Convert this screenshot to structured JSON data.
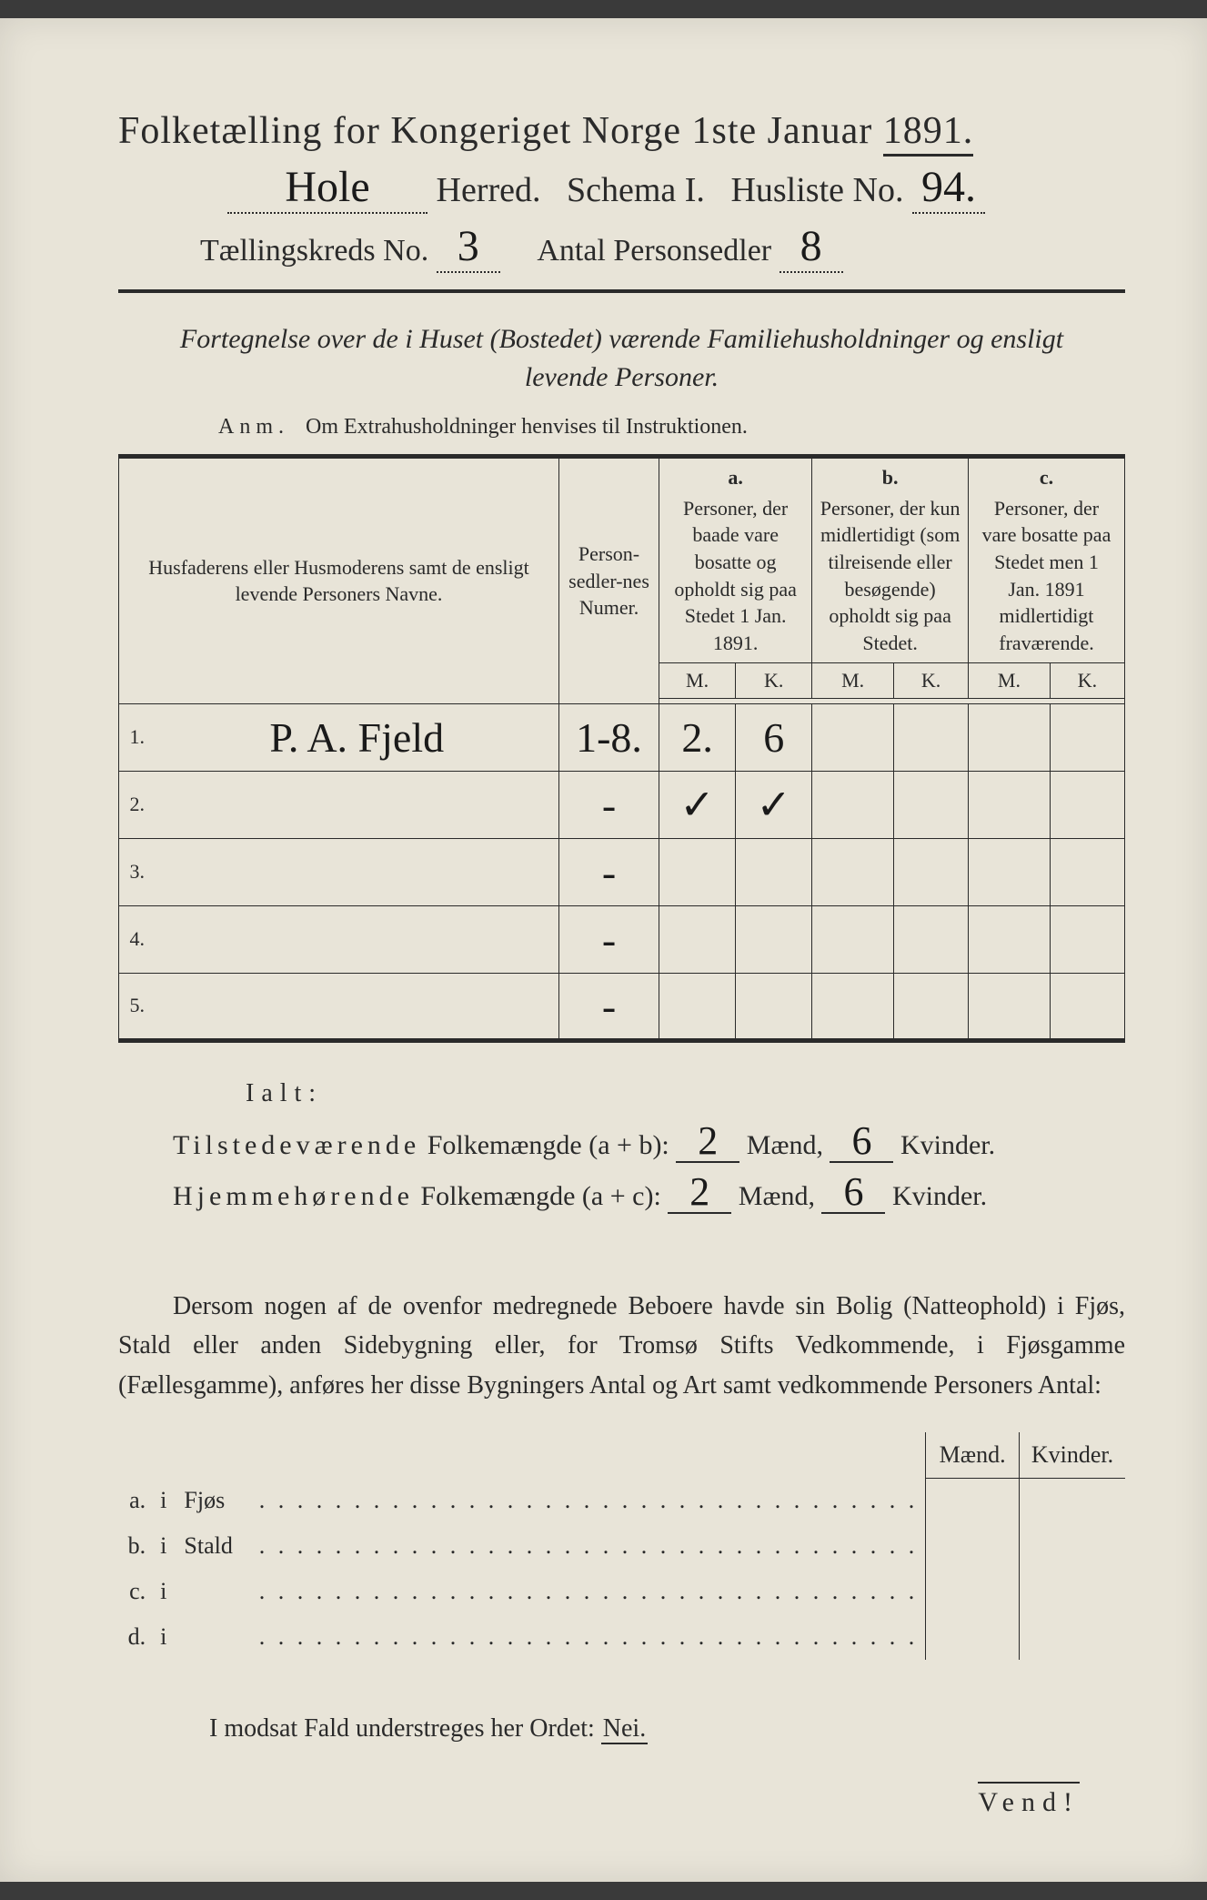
{
  "colors": {
    "paper": "#e8e4d8",
    "ink": "#2a2a2a",
    "handwriting": "#1a1a1a",
    "page_bg": "#3a3a3a"
  },
  "header": {
    "title_prefix": "Folketælling for Kongeriget Norge 1ste Januar",
    "year": "1891.",
    "herred_hw": "Hole",
    "herred_label": "Herred.",
    "schema_label": "Schema I.",
    "husliste_label": "Husliste No.",
    "husliste_no": "94.",
    "kreds_label": "Tællingskreds No.",
    "kreds_no": "3",
    "personsedler_label": "Antal Personsedler",
    "personsedler_no": "8"
  },
  "fortegnelse": {
    "line1": "Fortegnelse over de i Huset (Bostedet) værende Familiehusholdninger og ensligt",
    "line2": "levende Personer."
  },
  "anm": {
    "prefix": "Anm.",
    "text": "Om Extrahusholdninger henvises til Instruktionen."
  },
  "table": {
    "col_name": "Husfaderens eller Husmoderens samt de ensligt levende Personers Navne.",
    "col_numer": "Person-sedler-nes Numer.",
    "col_a_label": "a.",
    "col_a": "Personer, der baade vare bosatte og opholdt sig paa Stedet 1 Jan. 1891.",
    "col_b_label": "b.",
    "col_b": "Personer, der kun midlertidigt (som tilreisende eller besøgende) opholdt sig paa Stedet.",
    "col_c_label": "c.",
    "col_c": "Personer, der vare bosatte paa Stedet men 1 Jan. 1891 midlertidigt fraværende.",
    "mk_m": "M.",
    "mk_k": "K.",
    "rows": [
      {
        "n": "1.",
        "name": "P. A. Fjeld",
        "numer": "1-8.",
        "a_m": "2.",
        "a_k": "6",
        "b_m": "",
        "b_k": "",
        "c_m": "",
        "c_k": ""
      },
      {
        "n": "2.",
        "name": "",
        "numer": "-",
        "a_m": "✓",
        "a_k": "✓",
        "b_m": "",
        "b_k": "",
        "c_m": "",
        "c_k": ""
      },
      {
        "n": "3.",
        "name": "",
        "numer": "-",
        "a_m": "",
        "a_k": "",
        "b_m": "",
        "b_k": "",
        "c_m": "",
        "c_k": ""
      },
      {
        "n": "4.",
        "name": "",
        "numer": "-",
        "a_m": "",
        "a_k": "",
        "b_m": "",
        "b_k": "",
        "c_m": "",
        "c_k": ""
      },
      {
        "n": "5.",
        "name": "",
        "numer": "-",
        "a_m": "",
        "a_k": "",
        "b_m": "",
        "b_k": "",
        "c_m": "",
        "c_k": ""
      }
    ]
  },
  "totals": {
    "ialt": "Ialt:",
    "line1_label_a": "Tilstedeværende",
    "line1_label_b": "Folkemængde (a + b):",
    "line2_label_a": "Hjemmehørende",
    "line2_label_b": "Folkemængde (a + c):",
    "maend": "Mænd,",
    "kvinder": "Kvinder.",
    "l1_m": "2",
    "l1_k": "6",
    "l2_m": "2",
    "l2_k": "6"
  },
  "para": {
    "text": "Dersom nogen af de ovenfor medregnede Beboere havde sin Bolig (Natteophold) i Fjøs, Stald eller anden Sidebygning eller, for Tromsø Stifts Vedkommende, i Fjøsgamme (Fællesgamme), anføres her disse Bygningers Antal og Art samt vedkommende Personers Antal:"
  },
  "lower": {
    "maend": "Mænd.",
    "kvinder": "Kvinder.",
    "rows": [
      {
        "lbl": "a.",
        "i": "i",
        "type": "Fjøs"
      },
      {
        "lbl": "b.",
        "i": "i",
        "type": "Stald"
      },
      {
        "lbl": "c.",
        "i": "i",
        "type": ""
      },
      {
        "lbl": "d.",
        "i": "i",
        "type": ""
      }
    ]
  },
  "modsat": {
    "text": "I modsat Fald understreges her Ordet:",
    "nei": "Nei."
  },
  "vend": "Vend!"
}
